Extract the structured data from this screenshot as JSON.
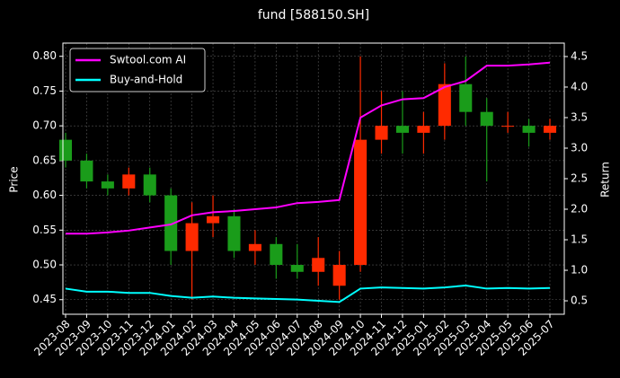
{
  "chart_data": {
    "type": "candlestick",
    "title": "fund [588150.SH]",
    "ylabel": "Price",
    "y2label": "Return",
    "categories": [
      "2023-08",
      "2023-09",
      "2023-10",
      "2023-11",
      "2023-12",
      "2024-01",
      "2024-02",
      "2024-03",
      "2024-04",
      "2024-05",
      "2024-06",
      "2024-07",
      "2024-08",
      "2024-09",
      "2024-10",
      "2024-11",
      "2024-12",
      "2025-01",
      "2025-02",
      "2025-03",
      "2025-04",
      "2025-05",
      "2025-06",
      "2025-07"
    ],
    "open": [
      0.68,
      0.65,
      0.62,
      0.61,
      0.63,
      0.6,
      0.52,
      0.56,
      0.57,
      0.52,
      0.53,
      0.5,
      0.49,
      0.47,
      0.5,
      0.68,
      0.7,
      0.69,
      0.7,
      0.76,
      0.72,
      0.7,
      0.7,
      0.69
    ],
    "high": [
      0.69,
      0.66,
      0.63,
      0.64,
      0.64,
      0.61,
      0.59,
      0.6,
      0.58,
      0.55,
      0.54,
      0.53,
      0.54,
      0.52,
      0.8,
      0.75,
      0.75,
      0.72,
      0.79,
      0.8,
      0.74,
      0.72,
      0.71,
      0.71
    ],
    "low": [
      0.64,
      0.61,
      0.6,
      0.6,
      0.59,
      0.5,
      0.45,
      0.54,
      0.51,
      0.5,
      0.48,
      0.48,
      0.47,
      0.45,
      0.49,
      0.66,
      0.66,
      0.66,
      0.68,
      0.7,
      0.62,
      0.69,
      0.67,
      0.68
    ],
    "close": [
      0.65,
      0.62,
      0.61,
      0.63,
      0.6,
      0.52,
      0.56,
      0.57,
      0.52,
      0.53,
      0.5,
      0.49,
      0.51,
      0.5,
      0.68,
      0.7,
      0.69,
      0.7,
      0.76,
      0.72,
      0.7,
      0.7,
      0.69,
      0.7
    ],
    "up_color": "#ff2a00",
    "down_color": "#1a9c1a",
    "series": [
      {
        "name": "Swtool.com AI",
        "color": "#ff00ff",
        "axis": "y2",
        "values": [
          1.6,
          1.6,
          1.62,
          1.65,
          1.7,
          1.75,
          1.9,
          1.95,
          1.97,
          2.0,
          2.03,
          2.1,
          2.12,
          2.15,
          3.5,
          3.7,
          3.8,
          3.82,
          4.0,
          4.1,
          4.35,
          4.35,
          4.37,
          4.4
        ]
      },
      {
        "name": "Buy-and-Hold",
        "color": "#00ffff",
        "axis": "y2",
        "values": [
          0.7,
          0.65,
          0.65,
          0.63,
          0.63,
          0.58,
          0.55,
          0.57,
          0.55,
          0.54,
          0.53,
          0.52,
          0.5,
          0.48,
          0.7,
          0.72,
          0.71,
          0.7,
          0.72,
          0.75,
          0.7,
          0.71,
          0.7,
          0.71
        ]
      }
    ],
    "ylim": [
      0.429,
      0.819
    ],
    "yticks": [
      0.45,
      {
        "value": 0.5,
        "label": "0.50"
      },
      0.55,
      {
        "value": 0.6,
        "label": "0.60"
      },
      0.65,
      {
        "value": 0.7,
        "label": "0.70"
      },
      0.75,
      {
        "value": 0.8,
        "label": "0.80"
      }
    ],
    "y2lim": [
      0.28,
      4.72
    ],
    "y2ticks": [
      0.5,
      {
        "value": 1,
        "label": "1.0"
      },
      1.5,
      {
        "value": 2,
        "label": "2.0"
      },
      2.5,
      {
        "value": 3,
        "label": "3.0"
      },
      3.5,
      {
        "value": 4,
        "label": "4.0"
      },
      4.5
    ],
    "grid": true,
    "legend": "upper left"
  }
}
